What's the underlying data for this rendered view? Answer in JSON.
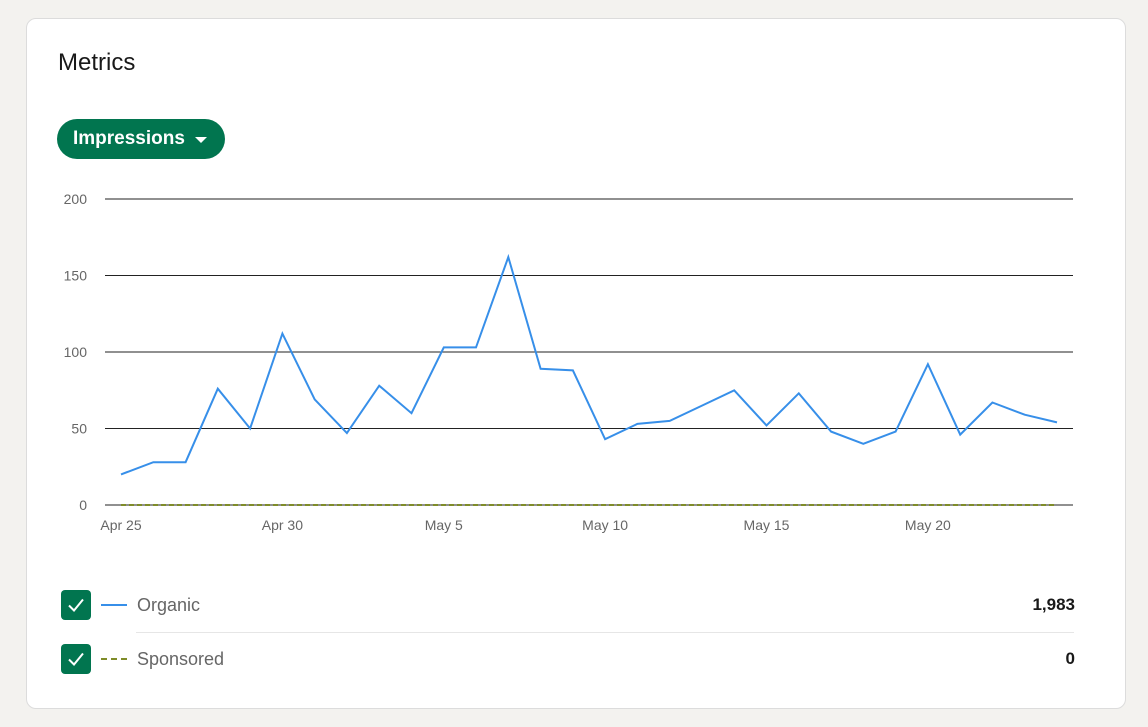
{
  "card": {
    "title": "Metrics"
  },
  "metric_selector": {
    "label": "Impressions"
  },
  "colors": {
    "accent": "#01754f",
    "organic": "#378fe9",
    "sponsored": "#7f8c29",
    "gridline": "#222222"
  },
  "chart_data": {
    "type": "line",
    "x": [
      "Apr 25",
      "Apr 26",
      "Apr 27",
      "Apr 28",
      "Apr 29",
      "Apr 30",
      "May 1",
      "May 2",
      "May 3",
      "May 4",
      "May 5",
      "May 6",
      "May 7",
      "May 8",
      "May 9",
      "May 10",
      "May 11",
      "May 12",
      "May 13",
      "May 14",
      "May 15",
      "May 16",
      "May 17",
      "May 18",
      "May 19",
      "May 20",
      "May 21",
      "May 22",
      "May 23",
      "May 24"
    ],
    "x_tick_labels": [
      "Apr 25",
      "Apr 30",
      "May 5",
      "May 10",
      "May 15",
      "May 20"
    ],
    "y_ticks": [
      0,
      50,
      100,
      150,
      200
    ],
    "ylim": [
      0,
      200
    ],
    "grid": true,
    "series": [
      {
        "name": "Organic",
        "style": "solid",
        "values": [
          20,
          28,
          28,
          76,
          50,
          112,
          69,
          47,
          78,
          60,
          103,
          103,
          162,
          89,
          88,
          43,
          53,
          55,
          65,
          75,
          52,
          73,
          48,
          40,
          48,
          92,
          46,
          67,
          59,
          54
        ]
      },
      {
        "name": "Sponsored",
        "style": "dashed",
        "values": [
          0,
          0,
          0,
          0,
          0,
          0,
          0,
          0,
          0,
          0,
          0,
          0,
          0,
          0,
          0,
          0,
          0,
          0,
          0,
          0,
          0,
          0,
          0,
          0,
          0,
          0,
          0,
          0,
          0,
          0
        ]
      }
    ]
  },
  "legend": [
    {
      "label": "Organic",
      "total": "1,983",
      "checked": true
    },
    {
      "label": "Sponsored",
      "total": "0",
      "checked": true
    }
  ]
}
